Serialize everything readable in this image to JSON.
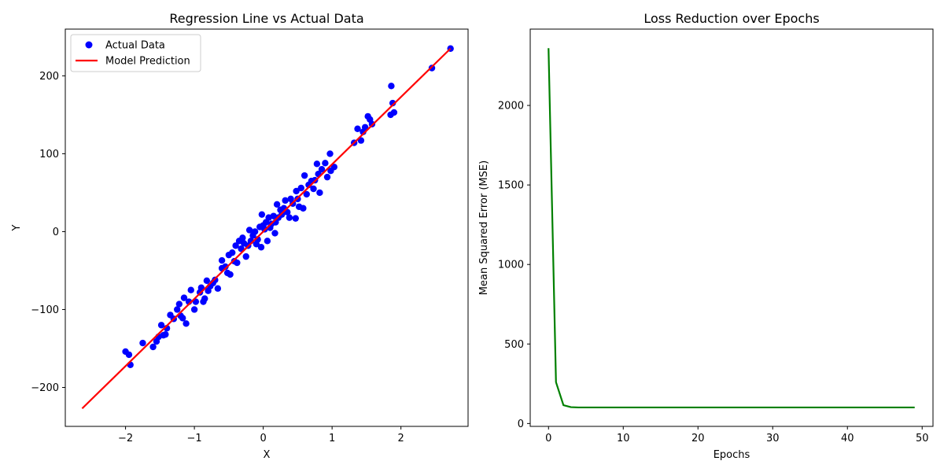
{
  "chart_data": [
    {
      "type": "scatter",
      "title": "Regression Line vs Actual Data",
      "xlabel": "X",
      "ylabel": "Y",
      "xlim": [
        -2.875,
        2.975
      ],
      "ylim": [
        -250,
        260
      ],
      "xticks": [
        -2,
        -1,
        0,
        1,
        2
      ],
      "yticks": [
        -200,
        -100,
        0,
        100,
        200
      ],
      "grid": false,
      "legend_position": "top-left",
      "series": [
        {
          "name": "Actual Data",
          "kind": "scatter",
          "color": "#0000ff",
          "points": [
            [
              -2.0,
              -154
            ],
            [
              -1.95,
              -158
            ],
            [
              -1.93,
              -171
            ],
            [
              -1.75,
              -143
            ],
            [
              -1.6,
              -148
            ],
            [
              -1.55,
              -141
            ],
            [
              -1.52,
              -135
            ],
            [
              -1.48,
              -120
            ],
            [
              -1.45,
              -133
            ],
            [
              -1.42,
              -132
            ],
            [
              -1.4,
              -124
            ],
            [
              -1.35,
              -107
            ],
            [
              -1.3,
              -112
            ],
            [
              -1.25,
              -100
            ],
            [
              -1.22,
              -93
            ],
            [
              -1.2,
              -108
            ],
            [
              -1.17,
              -111
            ],
            [
              -1.15,
              -85
            ],
            [
              -1.12,
              -118
            ],
            [
              -1.08,
              -90
            ],
            [
              -1.05,
              -75
            ],
            [
              -1.0,
              -100
            ],
            [
              -0.98,
              -90
            ],
            [
              -0.92,
              -78
            ],
            [
              -0.9,
              -72
            ],
            [
              -0.87,
              -90
            ],
            [
              -0.85,
              -86
            ],
            [
              -0.82,
              -63
            ],
            [
              -0.8,
              -76
            ],
            [
              -0.77,
              -70
            ],
            [
              -0.73,
              -66
            ],
            [
              -0.7,
              -62
            ],
            [
              -0.66,
              -73
            ],
            [
              -0.6,
              -47
            ],
            [
              -0.6,
              -37
            ],
            [
              -0.55,
              -45
            ],
            [
              -0.52,
              -53
            ],
            [
              -0.5,
              -30
            ],
            [
              -0.48,
              -55
            ],
            [
              -0.45,
              -27
            ],
            [
              -0.42,
              -38
            ],
            [
              -0.4,
              -18
            ],
            [
              -0.38,
              -40
            ],
            [
              -0.35,
              -12
            ],
            [
              -0.32,
              -22
            ],
            [
              -0.3,
              -8
            ],
            [
              -0.28,
              -15
            ],
            [
              -0.25,
              -32
            ],
            [
              -0.22,
              -18
            ],
            [
              -0.2,
              2
            ],
            [
              -0.18,
              -12
            ],
            [
              -0.15,
              -5
            ],
            [
              -0.12,
              0
            ],
            [
              -0.1,
              -16
            ],
            [
              -0.08,
              -10
            ],
            [
              -0.05,
              6
            ],
            [
              -0.03,
              -20
            ],
            [
              -0.02,
              22
            ],
            [
              0.0,
              8
            ],
            [
              0.02,
              3
            ],
            [
              0.04,
              12
            ],
            [
              0.06,
              -12
            ],
            [
              0.08,
              18
            ],
            [
              0.1,
              5
            ],
            [
              0.12,
              10
            ],
            [
              0.15,
              20
            ],
            [
              0.17,
              -2
            ],
            [
              0.18,
              12
            ],
            [
              0.2,
              35
            ],
            [
              0.22,
              18
            ],
            [
              0.25,
              28
            ],
            [
              0.27,
              22
            ],
            [
              0.3,
              30
            ],
            [
              0.32,
              40
            ],
            [
              0.35,
              25
            ],
            [
              0.38,
              18
            ],
            [
              0.4,
              42
            ],
            [
              0.43,
              36
            ],
            [
              0.47,
              17
            ],
            [
              0.48,
              52
            ],
            [
              0.5,
              42
            ],
            [
              0.52,
              32
            ],
            [
              0.55,
              56
            ],
            [
              0.58,
              30
            ],
            [
              0.6,
              72
            ],
            [
              0.63,
              48
            ],
            [
              0.66,
              60
            ],
            [
              0.7,
              65
            ],
            [
              0.73,
              55
            ],
            [
              0.75,
              66
            ],
            [
              0.78,
              87
            ],
            [
              0.8,
              74
            ],
            [
              0.82,
              50
            ],
            [
              0.85,
              80
            ],
            [
              0.9,
              88
            ],
            [
              0.93,
              70
            ],
            [
              0.97,
              100
            ],
            [
              0.98,
              78
            ],
            [
              1.03,
              83
            ],
            [
              1.32,
              114
            ],
            [
              1.37,
              132
            ],
            [
              1.42,
              117
            ],
            [
              1.45,
              128
            ],
            [
              1.48,
              134
            ],
            [
              1.52,
              148
            ],
            [
              1.55,
              144
            ],
            [
              1.58,
              138
            ],
            [
              1.85,
              150
            ],
            [
              1.86,
              187
            ],
            [
              1.88,
              165
            ],
            [
              1.9,
              153
            ],
            [
              2.45,
              210
            ],
            [
              2.72,
              235
            ]
          ]
        },
        {
          "name": "Model Prediction",
          "kind": "line",
          "color": "#ff0000",
          "points": [
            [
              -2.63,
              -227
            ],
            [
              2.72,
              235
            ]
          ]
        }
      ]
    },
    {
      "type": "line",
      "title": "Loss Reduction over Epochs",
      "xlabel": "Epochs",
      "ylabel": "Mean Squared Error (MSE)",
      "xlim": [
        -2.45,
        51.45
      ],
      "ylim": [
        -18,
        2480
      ],
      "xticks": [
        0,
        10,
        20,
        30,
        40,
        50
      ],
      "yticks": [
        0,
        500,
        1000,
        1500,
        2000
      ],
      "grid": false,
      "series": [
        {
          "kind": "line",
          "color": "#008000",
          "points": [
            [
              0,
              2360
            ],
            [
              1,
              260
            ],
            [
              2,
              115
            ],
            [
              3,
              103
            ],
            [
              4,
              101
            ],
            [
              5,
              101
            ],
            [
              10,
              101
            ],
            [
              20,
              101
            ],
            [
              30,
              101
            ],
            [
              40,
              101
            ],
            [
              49,
              101
            ]
          ]
        }
      ]
    }
  ]
}
